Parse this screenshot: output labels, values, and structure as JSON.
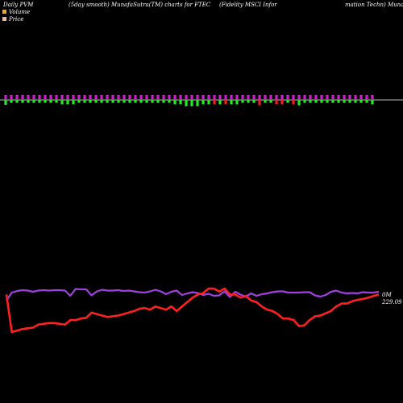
{
  "header": {
    "left": "Daily PVM",
    "middle": "(5day smooth) MunafaSutra(TM) charts for FTEC",
    "right": "(Fidelity MSCI Infor",
    "far_right": "mation Techn) Munafa"
  },
  "legend": {
    "volume_label": "Volume",
    "volume_color": "#e8a83a",
    "price_label": "Price",
    "price_color": "#f2b7a0"
  },
  "end_labels": {
    "volume_line": "0M",
    "price_line": "229.09"
  },
  "chart_data": {
    "type": "line",
    "colors": {
      "price_line": "#ff2020",
      "volume_line": "#a040e0",
      "pvm_up": "#cc22cc",
      "pvm_down": "#22ee22",
      "pvm_red": "#ee2020",
      "baseline": "#bbbbbb"
    },
    "pvm_bars": [
      {
        "up": 1.0,
        "down": 1.0,
        "col": "green"
      },
      {
        "up": 1.0,
        "down": 0.6,
        "col": "green"
      },
      {
        "up": 1.0,
        "down": 0.6,
        "col": "green"
      },
      {
        "up": 1.0,
        "down": 0.6,
        "col": "green"
      },
      {
        "up": 1.0,
        "down": 0.6,
        "col": "green"
      },
      {
        "up": 1.0,
        "down": 0.6,
        "col": "green"
      },
      {
        "up": 1.0,
        "down": 0.6,
        "col": "green"
      },
      {
        "up": 1.0,
        "down": 0.6,
        "col": "green"
      },
      {
        "up": 1.0,
        "down": 0.6,
        "col": "green"
      },
      {
        "up": 1.0,
        "down": 0.6,
        "col": "green"
      },
      {
        "up": 1.0,
        "down": 0.9,
        "col": "green"
      },
      {
        "up": 1.0,
        "down": 0.9,
        "col": "green"
      },
      {
        "up": 1.0,
        "down": 0.9,
        "col": "green"
      },
      {
        "up": 1.0,
        "down": 0.6,
        "col": "green"
      },
      {
        "up": 1.0,
        "down": 0.6,
        "col": "green"
      },
      {
        "up": 1.0,
        "down": 0.6,
        "col": "green"
      },
      {
        "up": 1.0,
        "down": 0.6,
        "col": "green"
      },
      {
        "up": 1.0,
        "down": 0.6,
        "col": "green"
      },
      {
        "up": 1.0,
        "down": 0.6,
        "col": "green"
      },
      {
        "up": 1.0,
        "down": 0.6,
        "col": "green"
      },
      {
        "up": 1.0,
        "down": 0.6,
        "col": "green"
      },
      {
        "up": 1.0,
        "down": 0.6,
        "col": "green"
      },
      {
        "up": 1.0,
        "down": 0.6,
        "col": "green"
      },
      {
        "up": 1.0,
        "down": 0.6,
        "col": "green"
      },
      {
        "up": 1.0,
        "down": 0.6,
        "col": "green"
      },
      {
        "up": 1.0,
        "down": 0.6,
        "col": "green"
      },
      {
        "up": 1.0,
        "down": 0.6,
        "col": "green"
      },
      {
        "up": 1.0,
        "down": 0.6,
        "col": "green"
      },
      {
        "up": 1.0,
        "down": 0.6,
        "col": "green"
      },
      {
        "up": 1.0,
        "down": 0.6,
        "col": "green"
      },
      {
        "up": 1.0,
        "down": 0.9,
        "col": "green"
      },
      {
        "up": 1.0,
        "down": 0.9,
        "col": "green"
      },
      {
        "up": 1.0,
        "down": 1.3,
        "col": "green"
      },
      {
        "up": 1.0,
        "down": 1.3,
        "col": "green"
      },
      {
        "up": 1.0,
        "down": 1.3,
        "col": "green"
      },
      {
        "up": 1.0,
        "down": 0.9,
        "col": "green"
      },
      {
        "up": 1.0,
        "down": 0.9,
        "col": "green"
      },
      {
        "up": 1.0,
        "down": 0.9,
        "col": "red"
      },
      {
        "up": 1.0,
        "down": 0.9,
        "col": "green"
      },
      {
        "up": 1.0,
        "down": 0.9,
        "col": "red"
      },
      {
        "up": 1.0,
        "down": 0.9,
        "col": "green"
      },
      {
        "up": 1.0,
        "down": 0.9,
        "col": "green"
      },
      {
        "up": 1.0,
        "down": 0.6,
        "col": "green"
      },
      {
        "up": 1.0,
        "down": 0.6,
        "col": "green"
      },
      {
        "up": 1.0,
        "down": 0.6,
        "col": "green"
      },
      {
        "up": 1.0,
        "down": 1.1,
        "col": "red"
      },
      {
        "up": 1.0,
        "down": 0.6,
        "col": "green"
      },
      {
        "up": 1.0,
        "down": 0.6,
        "col": "green"
      },
      {
        "up": 1.0,
        "down": 0.9,
        "col": "red"
      },
      {
        "up": 1.0,
        "down": 0.9,
        "col": "red"
      },
      {
        "up": 1.0,
        "down": 0.6,
        "col": "green"
      },
      {
        "up": 1.0,
        "down": 0.9,
        "col": "red"
      },
      {
        "up": 1.0,
        "down": 1.1,
        "col": "green"
      },
      {
        "up": 1.0,
        "down": 0.6,
        "col": "green"
      },
      {
        "up": 1.0,
        "down": 0.6,
        "col": "green"
      },
      {
        "up": 1.0,
        "down": 0.6,
        "col": "green"
      },
      {
        "up": 1.0,
        "down": 0.6,
        "col": "green"
      },
      {
        "up": 1.0,
        "down": 0.6,
        "col": "green"
      },
      {
        "up": 1.0,
        "down": 0.6,
        "col": "green"
      },
      {
        "up": 1.0,
        "down": 0.6,
        "col": "green"
      },
      {
        "up": 1.0,
        "down": 0.6,
        "col": "green"
      },
      {
        "up": 1.0,
        "down": 0.6,
        "col": "green"
      },
      {
        "up": 1.0,
        "down": 0.6,
        "col": "green"
      },
      {
        "up": 1.0,
        "down": 0.6,
        "col": "green"
      },
      {
        "up": 1.0,
        "down": 0.6,
        "col": "green"
      },
      {
        "up": 1.0,
        "down": 0.9,
        "col": "green"
      }
    ],
    "price_series": [
      229.09,
      204,
      205,
      206,
      206.5,
      207,
      209,
      209.5,
      210,
      210,
      209.5,
      209,
      212,
      212,
      213,
      213.5,
      217,
      216,
      215,
      214,
      214.5,
      215,
      216,
      217,
      218,
      219.5,
      220,
      219,
      221,
      220,
      219,
      221,
      218,
      221,
      224,
      227,
      229,
      230,
      233,
      233,
      231,
      233,
      229,
      229,
      227,
      228,
      225,
      224,
      221,
      219,
      218,
      216,
      213,
      213,
      212,
      208,
      208.5,
      212,
      214.5,
      215,
      216.5,
      218,
      221,
      223,
      223,
      224.5,
      225.5,
      226,
      227,
      228,
      229.09
    ],
    "volume_series": [
      0,
      2.0,
      2.4,
      2.6,
      2.5,
      2.2,
      2.5,
      2.6,
      2.5,
      2.6,
      2.6,
      2.5,
      1.2,
      2.9,
      2.8,
      2.8,
      1.3,
      2.3,
      2.7,
      2.5,
      2.5,
      2.6,
      2.4,
      2.5,
      2.3,
      2.1,
      2.0,
      2.3,
      2.7,
      2.3,
      1.6,
      2.2,
      2.5,
      1.4,
      1.8,
      2.1,
      1.9,
      1.4,
      1.7,
      1.2,
      1.3,
      2.3,
      0.9,
      2.2,
      1.5,
      1.0,
      1.8,
      1.2,
      1.6,
      1.8,
      2.1,
      2.3,
      2.3,
      2.0,
      2.0,
      2.0,
      2.1,
      2.1,
      1.3,
      1.0,
      1.4,
      2.2,
      2.5,
      2.0,
      1.8,
      1.9,
      1.8,
      2.1,
      2.0,
      2.0,
      2.2
    ],
    "baseline_level": 0
  }
}
